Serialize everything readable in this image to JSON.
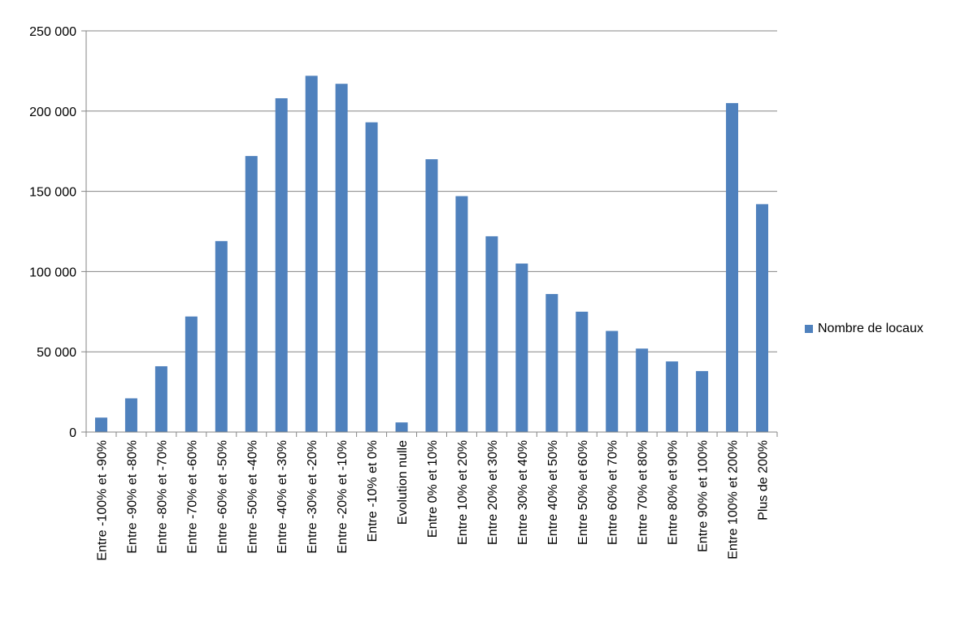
{
  "chart_data": {
    "type": "bar",
    "categories": [
      "Entre -100% et -90%",
      "Entre -90% et -80%",
      "Entre -80% et -70%",
      "Entre -70% et -60%",
      "Entre -60% et -50%",
      "Entre -50% et -40%",
      "Entre -40% et -30%",
      "Entre -30% et -20%",
      "Entre -20% et -10%",
      "Entre -10% et 0%",
      "Evolution nulle",
      "Entre 0% et 10%",
      "Entre 10% et 20%",
      "Entre 20% et 30%",
      "Entre 30% et 40%",
      "Entre 40% et 50%",
      "Entre 50% et 60%",
      "Entre 60% et 70%",
      "Entre 70% et 80%",
      "Entre 80% et 90%",
      "Entre 90% et 100%",
      "Entre 100% et 200%",
      "Plus de 200%"
    ],
    "series": [
      {
        "name": "Nombre de locaux",
        "color": "#4F81BD",
        "values": [
          9000,
          21000,
          41000,
          72000,
          119000,
          172000,
          208000,
          222000,
          217000,
          193000,
          6000,
          170000,
          147000,
          122000,
          105000,
          86000,
          75000,
          63000,
          52000,
          44000,
          38000,
          205000,
          142000
        ]
      }
    ],
    "title": "",
    "xlabel": "",
    "ylabel": "",
    "ylim": [
      0,
      250000
    ],
    "yticks": [
      0,
      50000,
      100000,
      150000,
      200000,
      250000
    ],
    "ytick_labels": [
      "0",
      "50 000",
      "100 000",
      "150 000",
      "200 000",
      "250 000"
    ],
    "grid": true,
    "legend_position": "right"
  }
}
